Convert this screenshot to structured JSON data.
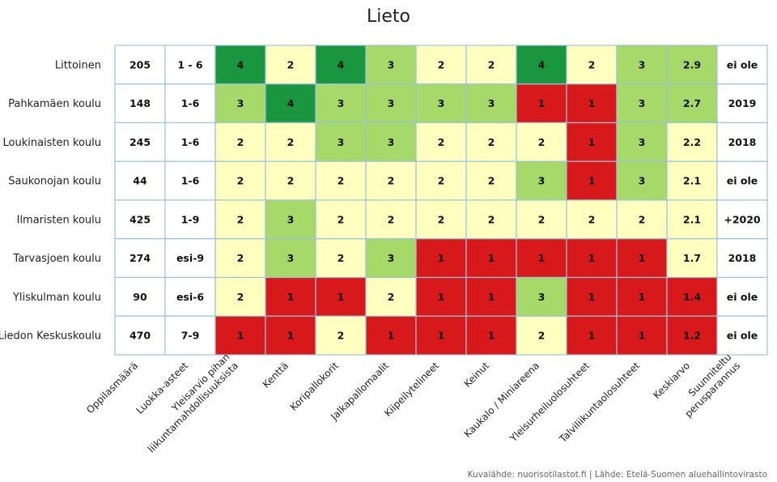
{
  "chart_data": {
    "type": "table",
    "title": "Lieto",
    "source": "Kuvalähde: nuorisotilastot.fi | Lähde: Etelä-Suomen aluehallintovirasto",
    "columns": [
      "Oppilasmäärä",
      "Luokka-asteet",
      "Yleisarvio pihan liikuntamahdollisuuksista",
      "Kenttä",
      "Koripallokorit",
      "Jalkapallomaalit",
      "Kiipeilytelineet",
      "Keinut",
      "Kaukalo / Miniareena",
      "Yleisurheiluolosuhteet",
      "Talviliikuntaolosuhteet",
      "Keskiarvo",
      "Suunniteltu perusparannus"
    ],
    "column_label_lines": [
      [
        "Oppilasmäärä"
      ],
      [
        "Luokka-asteet"
      ],
      [
        "Yleisarvio pihan",
        "liikuntamahdollisuuksista"
      ],
      [
        "Kenttä"
      ],
      [
        "Koripallokorit"
      ],
      [
        "Jalkapallomaalit"
      ],
      [
        "Kiipeilytelineet"
      ],
      [
        "Keinut"
      ],
      [
        "Kaukalo / Miniareena"
      ],
      [
        "Yleisurheiluolosuhteet"
      ],
      [
        "Talviliikuntaolosuhteet"
      ],
      [
        "Keskiarvo"
      ],
      [
        "Suunniteltu",
        "perusparannus"
      ]
    ],
    "rows": [
      {
        "school": "Littoinen",
        "students": "205",
        "grades": "1 - 6",
        "scores": [
          "4",
          "2",
          "4",
          "3",
          "2",
          "2",
          "4",
          "2",
          "3"
        ],
        "average": "2.9",
        "renovation": "ei ole"
      },
      {
        "school": "Pahkamäen koulu",
        "students": "148",
        "grades": "1-6",
        "scores": [
          "3",
          "4",
          "3",
          "3",
          "3",
          "3",
          "1",
          "1",
          "3"
        ],
        "average": "2.7",
        "renovation": "2019"
      },
      {
        "school": "Loukinaisten koulu",
        "students": "245",
        "grades": "1-6",
        "scores": [
          "2",
          "2",
          "3",
          "3",
          "2",
          "2",
          "2",
          "1",
          "3"
        ],
        "average": "2.2",
        "renovation": "2018"
      },
      {
        "school": "Saukonojan koulu",
        "students": "44",
        "grades": "1-6",
        "scores": [
          "2",
          "2",
          "2",
          "2",
          "2",
          "2",
          "3",
          "1",
          "3"
        ],
        "average": "2.1",
        "renovation": "ei ole"
      },
      {
        "school": "Ilmaristen koulu",
        "students": "425",
        "grades": "1-9",
        "scores": [
          "2",
          "3",
          "2",
          "2",
          "2",
          "2",
          "2",
          "2",
          "2"
        ],
        "average": "2.1",
        "renovation": "+2020"
      },
      {
        "school": "Tarvasjoen koulu",
        "students": "274",
        "grades": "esi-9",
        "scores": [
          "2",
          "3",
          "2",
          "3",
          "1",
          "1",
          "1",
          "1",
          "1"
        ],
        "average": "1.7",
        "renovation": "2018"
      },
      {
        "school": "Yliskulman koulu",
        "students": "90",
        "grades": "esi-6",
        "scores": [
          "2",
          "1",
          "1",
          "2",
          "1",
          "1",
          "3",
          "1",
          "1"
        ],
        "average": "1.4",
        "renovation": "ei ole"
      },
      {
        "school": "Liedon Keskuskoulu",
        "students": "470",
        "grades": "7-9",
        "scores": [
          "1",
          "1",
          "2",
          "1",
          "1",
          "1",
          "2",
          "1",
          "1"
        ],
        "average": "1.2",
        "renovation": "ei ole"
      }
    ],
    "colors": {
      "score_1": "#d7191c",
      "score_2": "#ffffbf",
      "score_3": "#a6d96a",
      "score_4": "#1a9641",
      "grid": "#9cc3da",
      "plain": "#ffffff"
    }
  }
}
